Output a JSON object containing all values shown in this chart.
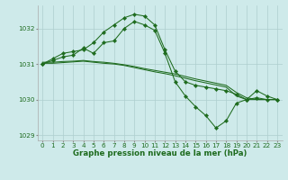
{
  "xlabel": "Graphe pression niveau de la mer (hPa)",
  "x": [
    0,
    1,
    2,
    3,
    4,
    5,
    6,
    7,
    8,
    9,
    10,
    11,
    12,
    13,
    14,
    15,
    16,
    17,
    18,
    19,
    20,
    21,
    22,
    23
  ],
  "series": [
    {
      "y": [
        1031.0,
        1031.15,
        1031.3,
        1031.35,
        1031.4,
        1031.6,
        1031.9,
        1032.1,
        1032.3,
        1032.4,
        1032.35,
        1032.1,
        1031.4,
        1030.8,
        1030.5,
        1030.4,
        1030.35,
        1030.3,
        1030.25,
        1030.15,
        1030.0,
        1030.05,
        1030.0,
        1030.0
      ],
      "marker": true
    },
    {
      "y": [
        1031.0,
        1031.1,
        1031.2,
        1031.25,
        1031.45,
        1031.3,
        1031.6,
        1031.65,
        1032.0,
        1032.2,
        1032.1,
        1031.95,
        1031.3,
        1030.5,
        1030.1,
        1029.8,
        1029.55,
        1029.2,
        1029.4,
        1029.9,
        1030.0,
        1030.25,
        1030.1,
        1030.0
      ],
      "marker": true
    },
    {
      "y": [
        1031.05,
        1031.05,
        1031.07,
        1031.08,
        1031.1,
        1031.07,
        1031.05,
        1031.02,
        1030.98,
        1030.93,
        1030.87,
        1030.82,
        1030.77,
        1030.72,
        1030.65,
        1030.58,
        1030.52,
        1030.46,
        1030.4,
        1030.2,
        1030.05,
        1030.0,
        1030.0,
        1030.0
      ],
      "marker": false
    },
    {
      "y": [
        1031.02,
        1031.02,
        1031.04,
        1031.06,
        1031.08,
        1031.05,
        1031.02,
        1031.0,
        1030.96,
        1030.9,
        1030.84,
        1030.78,
        1030.73,
        1030.67,
        1030.6,
        1030.53,
        1030.47,
        1030.41,
        1030.35,
        1030.1,
        1030.0,
        1030.0,
        1030.0,
        1030.0
      ],
      "marker": false
    }
  ],
  "line_color": "#1e6b1e",
  "background_color": "#ceeaea",
  "grid_color": "#aecece",
  "ylim": [
    1028.85,
    1032.65
  ],
  "yticks": [
    1029,
    1030,
    1031,
    1032
  ],
  "tick_fontsize": 5.2,
  "xlabel_fontsize": 6.2,
  "marker_size": 2.2,
  "linewidth": 0.75
}
